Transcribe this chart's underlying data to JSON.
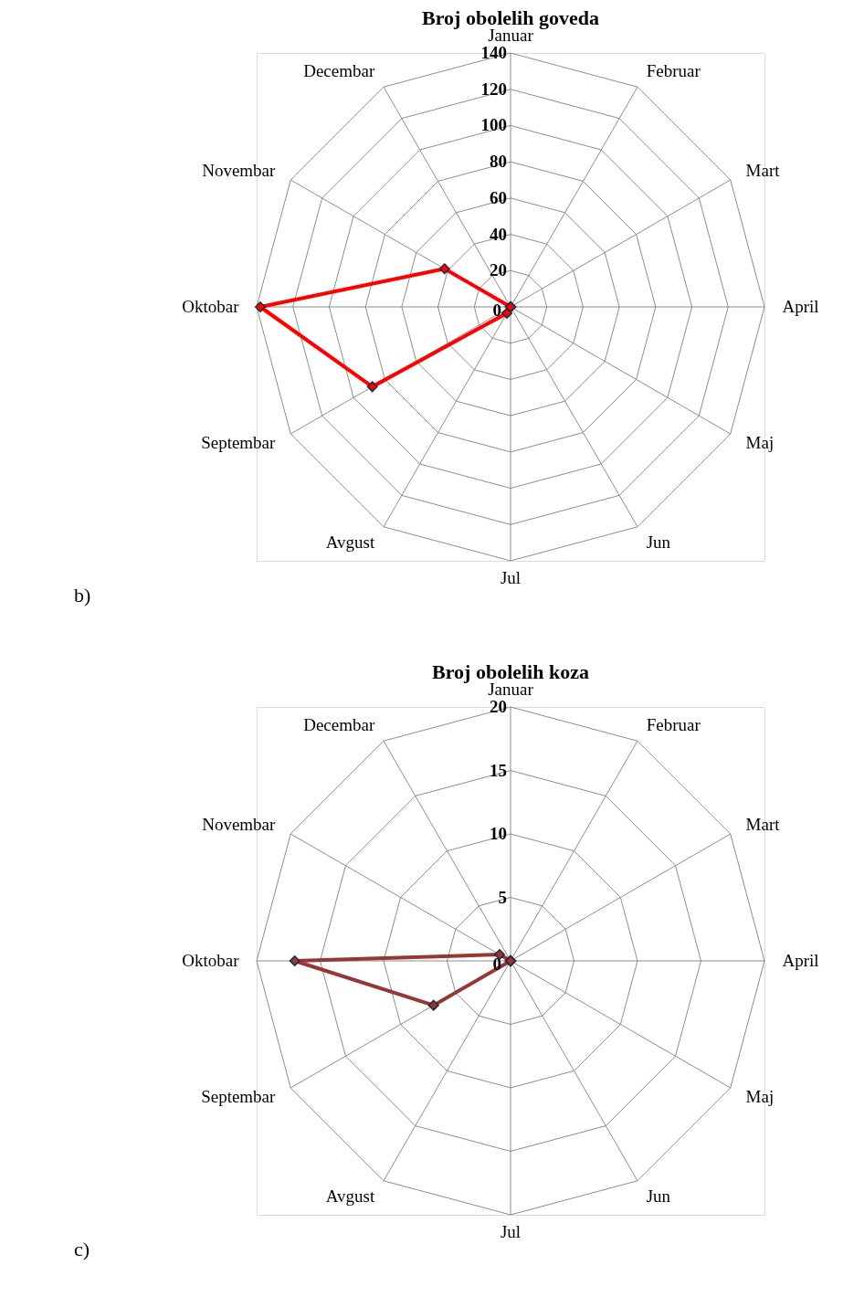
{
  "chart_data": [
    {
      "type": "radar",
      "title": "Broj obolelih goveda",
      "categories": [
        "Januar",
        "Februar",
        "Mart",
        "April",
        "Maj",
        "Jun",
        "Jul",
        "Avgust",
        "Septembar",
        "Oktobar",
        "Novembar",
        "Decembar"
      ],
      "series": [
        {
          "color": "#ff0000",
          "values": [
            0,
            0,
            0,
            0,
            0,
            0,
            0,
            4,
            88,
            138,
            42,
            0
          ]
        }
      ],
      "ylim": [
        0,
        140
      ],
      "yticks": [
        0,
        20,
        40,
        60,
        80,
        100,
        120,
        140
      ],
      "grid": true,
      "marker": "diamond",
      "annotations": [
        "b)"
      ]
    },
    {
      "type": "radar",
      "title": "Broj obolelih koza",
      "categories": [
        "Januar",
        "Februar",
        "Mart",
        "April",
        "Maj",
        "Jun",
        "Jul",
        "Avgust",
        "Septembar",
        "Oktobar",
        "Novembar",
        "Decembar"
      ],
      "series": [
        {
          "color": "#953735",
          "values": [
            0,
            0,
            0,
            0,
            0,
            0,
            0,
            0,
            7,
            17,
            1,
            0
          ]
        }
      ],
      "ylim": [
        0,
        20
      ],
      "yticks": [
        0,
        5,
        10,
        15,
        20
      ],
      "grid": true,
      "marker": "diamond",
      "annotations": [
        "c)"
      ]
    }
  ]
}
